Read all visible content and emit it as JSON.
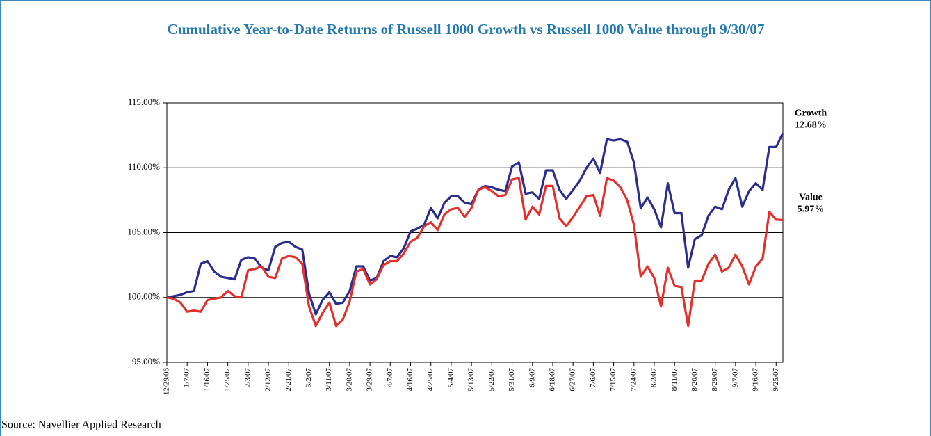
{
  "chart_data": {
    "type": "line",
    "title": "Cumulative Year-to-Date Returns of Russell 1000 Growth vs Russell 1000 Value through 9/30/07",
    "source": "Source: Navellier Applied Research",
    "categories": [
      "12/29/06",
      null,
      null,
      "1/7/07",
      null,
      null,
      "1/16/07",
      null,
      null,
      "1/25/07",
      null,
      null,
      "2/3/07",
      null,
      null,
      "2/12/07",
      null,
      null,
      "2/21/07",
      null,
      null,
      "3/2/07",
      null,
      null,
      "3/11/07",
      null,
      null,
      "3/20/07",
      null,
      null,
      "3/29/07",
      null,
      null,
      "4/7/07",
      null,
      null,
      "4/16/07",
      null,
      null,
      "4/25/07",
      null,
      null,
      "5/4/07",
      null,
      null,
      "5/13/07",
      null,
      null,
      "5/22/07",
      null,
      null,
      "5/31/07",
      null,
      null,
      "6/9/07",
      null,
      null,
      "6/18/07",
      null,
      null,
      "6/27/07",
      null,
      null,
      "7/6/07",
      null,
      null,
      "7/15/07",
      null,
      null,
      "7/24/07",
      null,
      null,
      "8/2/07",
      null,
      null,
      "8/11/07",
      null,
      null,
      "8/20/07",
      null,
      null,
      "8/29/07",
      null,
      null,
      "9/7/07",
      null,
      null,
      "9/16/07",
      null,
      null,
      "9/25/07",
      null
    ],
    "series": [
      {
        "name": "Growth",
        "color": "#2a2d8c",
        "end_label": "12.68%",
        "values": [
          100.0,
          100.1,
          100.2,
          100.4,
          100.5,
          102.6,
          102.8,
          102.0,
          101.6,
          101.5,
          101.4,
          102.9,
          103.1,
          103.0,
          102.3,
          102.1,
          103.9,
          104.2,
          104.3,
          103.9,
          103.7,
          100.3,
          98.7,
          99.8,
          100.4,
          99.5,
          99.6,
          100.5,
          102.4,
          102.4,
          101.3,
          101.5,
          102.8,
          103.2,
          103.1,
          103.8,
          105.1,
          105.3,
          105.6,
          106.9,
          106.1,
          107.3,
          107.8,
          107.8,
          107.3,
          107.2,
          108.3,
          108.6,
          108.5,
          108.3,
          108.2,
          110.1,
          110.4,
          108.0,
          108.1,
          107.6,
          109.8,
          109.8,
          108.3,
          107.6,
          108.3,
          109.0,
          110.0,
          110.7,
          109.6,
          112.2,
          112.1,
          112.2,
          112.0,
          110.4,
          106.9,
          107.7,
          106.8,
          105.4,
          108.8,
          106.5,
          106.5,
          102.3,
          104.5,
          104.8,
          106.3,
          107.0,
          106.8,
          108.3,
          109.2,
          107.0,
          108.2,
          108.8,
          108.3,
          111.6,
          111.6,
          112.68
        ]
      },
      {
        "name": "Value",
        "color": "#e3302d",
        "end_label": "5.97%",
        "values": [
          100.0,
          99.9,
          99.6,
          98.9,
          99.0,
          98.9,
          99.8,
          99.9,
          100.0,
          100.5,
          100.1,
          100.0,
          102.1,
          102.2,
          102.4,
          101.6,
          101.5,
          103.0,
          103.2,
          103.1,
          102.6,
          99.3,
          97.8,
          98.8,
          99.6,
          97.8,
          98.3,
          99.7,
          102.0,
          102.2,
          101.0,
          101.4,
          102.5,
          102.8,
          102.8,
          103.4,
          104.3,
          104.6,
          105.5,
          105.8,
          105.2,
          106.4,
          106.8,
          106.9,
          106.2,
          106.9,
          108.3,
          108.5,
          108.2,
          107.8,
          107.9,
          109.1,
          109.2,
          106.0,
          107.0,
          106.4,
          108.6,
          108.6,
          106.1,
          105.5,
          106.2,
          107.0,
          107.8,
          107.9,
          106.3,
          109.2,
          109.0,
          108.5,
          107.5,
          105.6,
          101.6,
          102.4,
          101.5,
          99.3,
          102.3,
          100.9,
          100.8,
          97.8,
          101.3,
          101.3,
          102.6,
          103.3,
          102.0,
          102.3,
          103.3,
          102.4,
          101.0,
          102.4,
          103.0,
          106.6,
          106.0,
          105.97
        ]
      }
    ],
    "ylim": [
      95,
      115
    ],
    "yticks": [
      {
        "value": 95,
        "label": "95.00%"
      },
      {
        "value": 100,
        "label": "100.00%"
      },
      {
        "value": 105,
        "label": "105.00%"
      },
      {
        "value": 110,
        "label": "110.00%"
      },
      {
        "value": 115,
        "label": "115.00%"
      }
    ],
    "grid": true
  }
}
